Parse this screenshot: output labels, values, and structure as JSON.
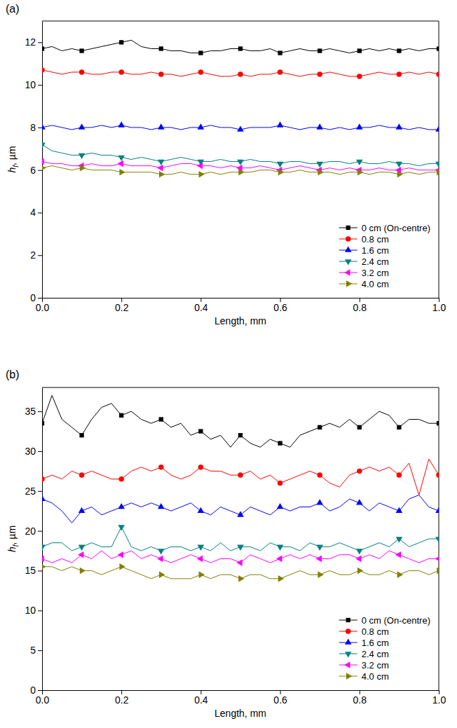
{
  "chart_data": [
    {
      "type": "line",
      "title": "(a)",
      "x_label": "Length, mm",
      "y_label": {
        "main": "h",
        "sub": "f",
        "rest": ", µm"
      },
      "x": [
        0,
        0.025,
        0.05,
        0.075,
        0.1,
        0.125,
        0.15,
        0.175,
        0.2,
        0.225,
        0.25,
        0.275,
        0.3,
        0.325,
        0.35,
        0.375,
        0.4,
        0.425,
        0.45,
        0.475,
        0.5,
        0.525,
        0.55,
        0.575,
        0.6,
        0.625,
        0.65,
        0.675,
        0.7,
        0.725,
        0.75,
        0.775,
        0.8,
        0.825,
        0.85,
        0.875,
        0.9,
        0.925,
        0.95,
        0.975,
        1
      ],
      "xlim": [
        0,
        1
      ],
      "xticks": [
        {
          "value": 0,
          "label": "0.0"
        },
        {
          "value": 0.2,
          "label": "0.2"
        },
        {
          "value": 0.4,
          "label": "0.4"
        },
        {
          "value": 0.6,
          "label": "0.6"
        },
        {
          "value": 0.8,
          "label": "0.8"
        },
        {
          "value": 1,
          "label": "1.0"
        }
      ],
      "ylim": [
        0,
        13
      ],
      "yticks": [
        0,
        2,
        4,
        6,
        8,
        10,
        12
      ],
      "legend": "lower right",
      "series": [
        {
          "name": "0 cm (On-centre)",
          "color": "#000000",
          "marker": "square",
          "values": [
            11.7,
            11.8,
            11.6,
            11.7,
            11.6,
            11.7,
            11.8,
            11.9,
            12.0,
            12.1,
            11.8,
            11.7,
            11.7,
            11.6,
            11.6,
            11.5,
            11.5,
            11.6,
            11.6,
            11.7,
            11.7,
            11.6,
            11.6,
            11.7,
            11.5,
            11.6,
            11.7,
            11.6,
            11.6,
            11.7,
            11.6,
            11.5,
            11.6,
            11.7,
            11.6,
            11.7,
            11.6,
            11.7,
            11.6,
            11.7,
            11.7
          ]
        },
        {
          "name": "0.8 cm",
          "color": "#ff0000",
          "marker": "circle",
          "values": [
            10.7,
            10.6,
            10.5,
            10.6,
            10.6,
            10.5,
            10.5,
            10.6,
            10.6,
            10.5,
            10.5,
            10.6,
            10.5,
            10.5,
            10.4,
            10.5,
            10.6,
            10.5,
            10.4,
            10.4,
            10.5,
            10.4,
            10.5,
            10.5,
            10.6,
            10.5,
            10.4,
            10.5,
            10.5,
            10.6,
            10.5,
            10.4,
            10.4,
            10.5,
            10.6,
            10.5,
            10.5,
            10.6,
            10.5,
            10.6,
            10.5
          ]
        },
        {
          "name": "1.6 cm",
          "color": "#0000ff",
          "marker": "triangle-up",
          "values": [
            8.0,
            8.1,
            8.0,
            7.9,
            8.0,
            8.0,
            8.1,
            8.0,
            8.1,
            8.0,
            8.0,
            7.9,
            8.0,
            8.0,
            7.9,
            8.0,
            8.0,
            8.1,
            8.0,
            8.0,
            7.9,
            8.0,
            8.0,
            8.0,
            8.1,
            8.0,
            7.9,
            8.0,
            8.0,
            7.9,
            8.0,
            7.9,
            8.0,
            8.0,
            8.1,
            8.0,
            8.0,
            7.9,
            8.0,
            7.9,
            7.9
          ]
        },
        {
          "name": "2.4 cm",
          "color": "#008080",
          "marker": "triangle-down",
          "values": [
            7.2,
            6.9,
            6.8,
            6.7,
            6.7,
            6.8,
            6.7,
            6.7,
            6.6,
            6.5,
            6.6,
            6.5,
            6.4,
            6.5,
            6.6,
            6.5,
            6.4,
            6.4,
            6.5,
            6.4,
            6.4,
            6.5,
            6.4,
            6.4,
            6.3,
            6.4,
            6.4,
            6.3,
            6.3,
            6.4,
            6.4,
            6.3,
            6.4,
            6.3,
            6.3,
            6.4,
            6.3,
            6.3,
            6.2,
            6.3,
            6.3
          ]
        },
        {
          "name": "3.2 cm",
          "color": "#ff00ff",
          "marker": "triangle-left",
          "values": [
            6.4,
            6.3,
            6.3,
            6.2,
            6.2,
            6.3,
            6.2,
            6.2,
            6.3,
            6.2,
            6.2,
            6.2,
            6.1,
            6.2,
            6.3,
            6.3,
            6.2,
            6.2,
            6.1,
            6.2,
            6.1,
            6.1,
            6.2,
            6.1,
            6.0,
            6.1,
            6.2,
            6.1,
            6.0,
            6.1,
            6.0,
            6.1,
            6.0,
            6.0,
            6.1,
            6.0,
            6.0,
            6.1,
            6.0,
            6.0,
            6.0
          ]
        },
        {
          "name": "4.0 cm",
          "color": "#808000",
          "marker": "triangle-right",
          "values": [
            6.1,
            6.2,
            6.1,
            6.0,
            6.1,
            6.0,
            6.0,
            6.0,
            5.9,
            5.9,
            5.9,
            5.9,
            5.8,
            5.8,
            5.9,
            5.8,
            5.8,
            5.9,
            5.8,
            5.9,
            5.9,
            5.9,
            6.0,
            6.0,
            5.9,
            5.9,
            6.0,
            5.9,
            5.9,
            5.9,
            5.8,
            5.9,
            5.9,
            5.8,
            5.9,
            5.9,
            5.8,
            5.9,
            5.8,
            5.9,
            5.9
          ]
        }
      ]
    },
    {
      "type": "line",
      "title": "(b)",
      "x_label": "Length, mm",
      "y_label": {
        "main": "h",
        "sub": "f",
        "rest": ", µm"
      },
      "x": [
        0,
        0.025,
        0.05,
        0.075,
        0.1,
        0.125,
        0.15,
        0.175,
        0.2,
        0.225,
        0.25,
        0.275,
        0.3,
        0.325,
        0.35,
        0.375,
        0.4,
        0.425,
        0.45,
        0.475,
        0.5,
        0.525,
        0.55,
        0.575,
        0.6,
        0.625,
        0.65,
        0.675,
        0.7,
        0.725,
        0.75,
        0.775,
        0.8,
        0.825,
        0.85,
        0.875,
        0.9,
        0.925,
        0.95,
        0.975,
        1
      ],
      "xlim": [
        0,
        1
      ],
      "xticks": [
        {
          "value": 0,
          "label": "0.0"
        },
        {
          "value": 0.2,
          "label": "0.2"
        },
        {
          "value": 0.4,
          "label": "0.4"
        },
        {
          "value": 0.6,
          "label": "0.6"
        },
        {
          "value": 0.8,
          "label": "0.8"
        },
        {
          "value": 1,
          "label": "1.0"
        }
      ],
      "ylim": [
        0,
        38
      ],
      "yticks": [
        0,
        5,
        10,
        15,
        20,
        25,
        30,
        35
      ],
      "legend": "lower right",
      "series": [
        {
          "name": "0 cm (On-centre)",
          "color": "#000000",
          "marker": "square",
          "values": [
            33.5,
            37,
            34,
            33,
            32,
            34,
            35.5,
            36,
            34.5,
            35,
            34,
            33.5,
            34,
            33,
            33.5,
            32,
            32.5,
            31.5,
            32,
            30.5,
            32,
            31,
            30.5,
            31.5,
            31,
            30.5,
            32,
            32.5,
            33,
            33.5,
            33,
            34,
            33,
            34,
            35,
            34.5,
            33,
            34,
            34,
            33.5,
            33.5
          ]
        },
        {
          "name": "0.8 cm",
          "color": "#ff0000",
          "marker": "circle",
          "values": [
            26.5,
            27,
            26.5,
            27.5,
            27,
            27.5,
            27,
            26.5,
            26.5,
            27.5,
            28,
            27.5,
            28,
            27,
            26.5,
            27,
            28,
            27.5,
            27.5,
            27,
            27,
            27.5,
            26.5,
            27,
            26,
            26.5,
            27,
            27.5,
            27,
            26,
            25.5,
            27,
            27.5,
            28,
            27.5,
            28,
            27,
            28.5,
            24.5,
            29,
            27
          ]
        },
        {
          "name": "1.6 cm",
          "color": "#0000ff",
          "marker": "triangle-up",
          "values": [
            24,
            23.5,
            22.5,
            21,
            22.5,
            23,
            22,
            22.5,
            23,
            23.5,
            23,
            23.5,
            23,
            22.5,
            23,
            23.5,
            22.5,
            22,
            23,
            22.5,
            22,
            23,
            22.5,
            22,
            23,
            22.5,
            23,
            23,
            23.5,
            22.5,
            23,
            24,
            23.5,
            22.5,
            23.5,
            23,
            22.5,
            24,
            24.5,
            23,
            22.5
          ]
        },
        {
          "name": "2.4 cm",
          "color": "#008080",
          "marker": "triangle-down",
          "values": [
            18,
            18.5,
            18.5,
            17.5,
            18,
            18.5,
            18,
            18,
            20.5,
            18,
            17.5,
            18,
            17.5,
            18,
            18,
            17.5,
            18,
            17.5,
            18.5,
            17.5,
            18,
            18,
            17.5,
            18.5,
            18,
            18,
            17.5,
            18.5,
            18,
            18,
            18.5,
            18,
            17.5,
            18,
            18.5,
            18,
            19,
            18,
            18.5,
            19,
            19
          ]
        },
        {
          "name": "3.2 cm",
          "color": "#ff00ff",
          "marker": "triangle-left",
          "values": [
            16.5,
            16,
            16.5,
            16,
            17,
            16.5,
            17.5,
            16.5,
            17,
            17.5,
            16.5,
            17,
            16.5,
            16,
            16.5,
            17,
            16.5,
            16,
            16.5,
            16.5,
            16,
            17,
            16.5,
            16,
            16.5,
            17,
            16.5,
            17,
            16.5,
            16.5,
            17,
            17,
            16.5,
            17,
            16.5,
            17.5,
            17,
            16.5,
            16,
            16.5,
            16.5
          ]
        },
        {
          "name": "4.0 cm",
          "color": "#808000",
          "marker": "triangle-right",
          "values": [
            15.5,
            15.5,
            15,
            15.5,
            15,
            15,
            14.5,
            15,
            15.5,
            15,
            14.5,
            14,
            14.5,
            14,
            14,
            14,
            14.5,
            14,
            14.5,
            14.5,
            14,
            14.5,
            14.5,
            14,
            14,
            14.5,
            15,
            14.5,
            14.5,
            15,
            14.5,
            14.5,
            15,
            14.5,
            14.5,
            15,
            14.5,
            15,
            15,
            14.5,
            15
          ]
        }
      ]
    }
  ]
}
